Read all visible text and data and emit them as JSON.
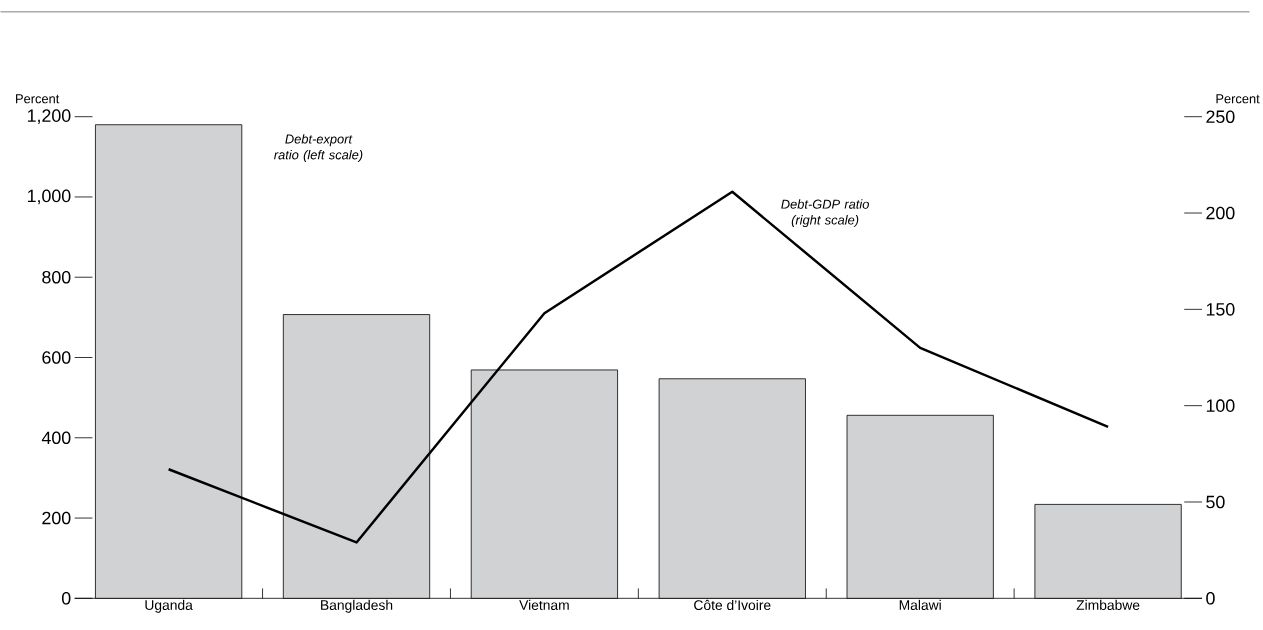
{
  "chart_data": {
    "type": "bar",
    "ylabel": "Percent",
    "y2label": "Percent",
    "categories": [
      "Uganda",
      "Bangladesh",
      "Vietnam",
      "Côte d’Ivoire",
      "Malawi",
      "Zimbabwe"
    ],
    "series": [
      {
        "name": "*Debt-export ratio (left scale)*",
        "color": "#d1d2d4",
        "values": [
          1180,
          707,
          569,
          547,
          456,
          234
        ]
      },
      {
        "name": "*Debt-GDP ratio (right scale)*",
        "type": "line",
        "axis": "y2",
        "color": "#000000",
        "values": [
          67,
          29,
          148,
          211,
          130,
          89
        ]
      }
    ],
    "ylim": [
      0,
      1200
    ],
    "yticks": [
      0,
      200,
      400,
      600,
      800,
      {
        "value": 1000,
        "label": "1,000"
      },
      {
        "value": 1200,
        "label": "1,200"
      }
    ],
    "y2lim": [
      0,
      250
    ],
    "y2ticks": [
      0,
      50,
      100,
      150,
      200,
      250
    ]
  }
}
